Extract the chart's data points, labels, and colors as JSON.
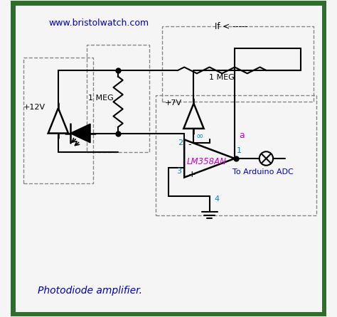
{
  "bg_color": "#f5f5f5",
  "border_color": "#2d6e2d",
  "website": "www.bristolwatch.com",
  "if_label": "If < -----",
  "resistor1_label": "1 MEG",
  "resistor2_label": "1 MEG",
  "v12_label": "+12V",
  "v7_label": "+7V",
  "ic_label": "LM358AN",
  "node2_label": "2",
  "node3_label": "3",
  "node1_label": "1",
  "node4_label": "4",
  "node8_label": "∞",
  "nodea_label": "a",
  "arduino_label": "To Arduino ADC",
  "bottom_label": "Photodiode amplifier.",
  "label_color_blue": "#0000cc",
  "label_color_magenta": "#cc00cc",
  "label_color_cyan": "#0088cc",
  "wire_color": "#000000",
  "dashed_color": "#888888"
}
